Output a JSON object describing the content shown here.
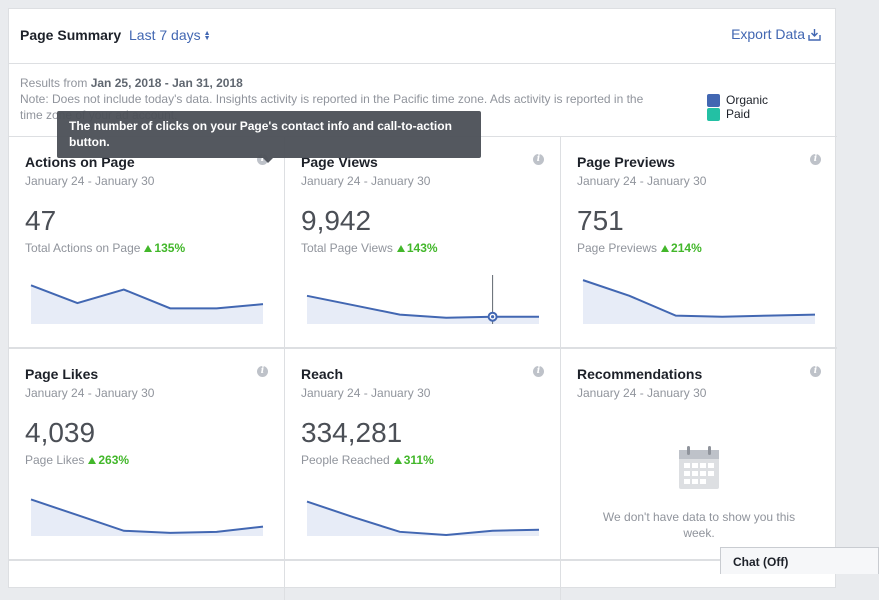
{
  "header": {
    "title": "Page Summary",
    "range_label": "Last 7 days",
    "export_label": "Export Data"
  },
  "note": {
    "results_prefix": "Results from",
    "results_range": "Jan 25, 2018 - Jan 31, 2018",
    "line2": "Note: Does not include today's data. Insights activity is reported in the Pacific time zone. Ads activity is reported in the",
    "line3": "time zone of your ad account."
  },
  "legend": {
    "items": [
      {
        "label": "Organic",
        "color": "#4267b2"
      },
      {
        "label": "Paid",
        "color": "#23c0a4"
      }
    ]
  },
  "tooltip": {
    "text": "The number of clicks on your Page's contact info and call-to-action button."
  },
  "cards": [
    {
      "title": "Actions on Page",
      "date": "January 24 - January 30",
      "value": "47",
      "sub": "Total Actions on Page",
      "change": "135%",
      "series": [
        37,
        20,
        33,
        15,
        15,
        19
      ]
    },
    {
      "title": "Page Views",
      "date": "January 24 - January 30",
      "value": "9,942",
      "sub": "Total Page Views",
      "change": "143%",
      "series": [
        27,
        18,
        9,
        6,
        7,
        7
      ]
    },
    {
      "title": "Page Previews",
      "date": "January 24 - January 30",
      "value": "751",
      "sub": "Page Previews",
      "change": "214%",
      "series": [
        42,
        27,
        8,
        7,
        8,
        9
      ]
    },
    {
      "title": "Page Likes",
      "date": "January 24 - January 30",
      "value": "4,039",
      "sub": "Page Likes",
      "change": "263%",
      "series": [
        35,
        20,
        5,
        3,
        4,
        9
      ]
    },
    {
      "title": "Reach",
      "date": "January 24 - January 30",
      "value": "334,281",
      "sub": "People Reached",
      "change": "311%",
      "series": [
        33,
        18,
        4,
        1,
        5,
        6
      ]
    },
    {
      "title": "Recommendations",
      "date": "January 24 - January 30",
      "empty_text": "We don't have data to show you this week."
    }
  ],
  "chat": {
    "label": "Chat (Off)"
  },
  "colors": {
    "line": "#4267b2",
    "fill": "#e7ecf7",
    "up": "#42b72a"
  }
}
